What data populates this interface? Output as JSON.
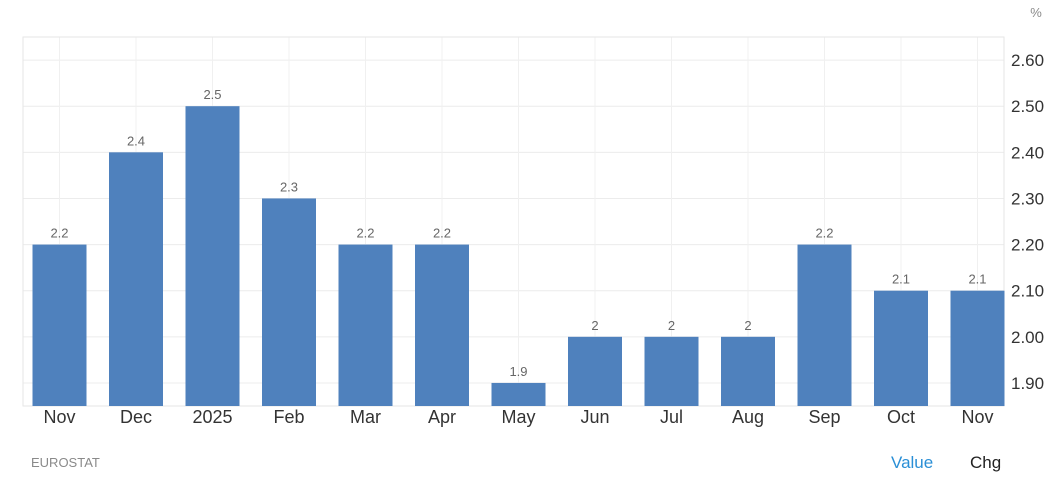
{
  "chart_data": {
    "type": "bar",
    "categories": [
      "Nov",
      "Dec",
      "2025",
      "Feb",
      "Mar",
      "Apr",
      "May",
      "Jun",
      "Jul",
      "Aug",
      "Sep",
      "Oct",
      "Nov"
    ],
    "values": [
      2.2,
      2.4,
      2.5,
      2.3,
      2.2,
      2.2,
      1.9,
      2.0,
      2.0,
      2.0,
      2.2,
      2.1,
      2.1
    ],
    "data_labels": [
      "2.2",
      "2.4",
      "2.5",
      "2.3",
      "2.2",
      "2.2",
      "1.9",
      "2",
      "2",
      "2",
      "2.2",
      "2.1",
      "2.1"
    ],
    "ylim": [
      1.85,
      2.65
    ],
    "yticks": [
      1.9,
      2.0,
      2.1,
      2.2,
      2.3,
      2.4,
      2.5,
      2.6
    ],
    "ytick_labels": [
      "1.90",
      "2.00",
      "2.10",
      "2.20",
      "2.30",
      "2.40",
      "2.50",
      "2.60"
    ],
    "y_unit": "%",
    "y_axis_position": "right",
    "grid": true,
    "bar_color": "#4f81bd"
  },
  "footer": {
    "source": "EUROSTAT",
    "value_label": "Value",
    "chg_label": "Chg"
  }
}
